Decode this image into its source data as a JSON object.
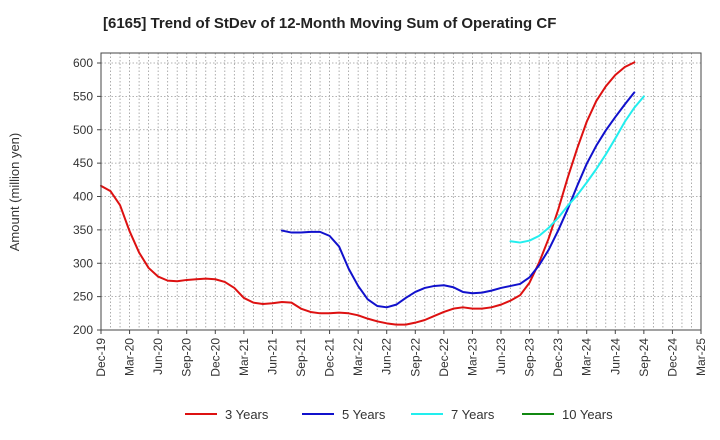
{
  "chart_data": {
    "type": "line",
    "title": "[6165]  Trend of StDev of 12-Month Moving Sum of Operating CF",
    "xlabel": "",
    "ylabel": "Amount (million yen)",
    "ylim": [
      200,
      615
    ],
    "y_ticks": [
      200,
      250,
      300,
      350,
      400,
      450,
      500,
      550,
      600
    ],
    "x_tick_labels": [
      "Dec-19",
      "Mar-20",
      "Jun-20",
      "Sep-20",
      "Dec-20",
      "Mar-21",
      "Jun-21",
      "Sep-21",
      "Dec-21",
      "Mar-22",
      "Jun-22",
      "Sep-22",
      "Dec-22",
      "Mar-23",
      "Jun-23",
      "Sep-23",
      "Dec-23",
      "Mar-24",
      "Jun-24",
      "Sep-24",
      "Dec-24",
      "Mar-25"
    ],
    "x_range_months": [
      0,
      63
    ],
    "grid": true,
    "legend_position": "bottom",
    "series": [
      {
        "name": "3 Years",
        "color": "#dd1111",
        "start_month": 0,
        "values": [
          416,
          408,
          387,
          348,
          316,
          293,
          280,
          274,
          273,
          275,
          276,
          277,
          276,
          272,
          263,
          248,
          241,
          239,
          240,
          242,
          241,
          232,
          227,
          225,
          225,
          226,
          225,
          222,
          217,
          213,
          210,
          208,
          208,
          211,
          215,
          221,
          227,
          232,
          234,
          232,
          232,
          234,
          238,
          244,
          252,
          271,
          301,
          337,
          380,
          428,
          472,
          512,
          543,
          565,
          582,
          594,
          601
        ]
      },
      {
        "name": "5 Years",
        "color": "#1111cc",
        "start_month": 19,
        "values": [
          349,
          346,
          346,
          347,
          347,
          341,
          325,
          292,
          266,
          246,
          236,
          234,
          238,
          248,
          257,
          263,
          266,
          267,
          264,
          257,
          255,
          256,
          259,
          263,
          266,
          269,
          279,
          297,
          320,
          349,
          381,
          416,
          449,
          476,
          499,
          519,
          538,
          556
        ]
      },
      {
        "name": "7 Years",
        "color": "#22eeee",
        "start_month": 43,
        "values": [
          333,
          331,
          334,
          341,
          353,
          368,
          386,
          402,
          421,
          441,
          463,
          487,
          512,
          533,
          550
        ]
      },
      {
        "name": "10 Years",
        "color": "#118811",
        "start_month": null,
        "values": []
      }
    ]
  }
}
